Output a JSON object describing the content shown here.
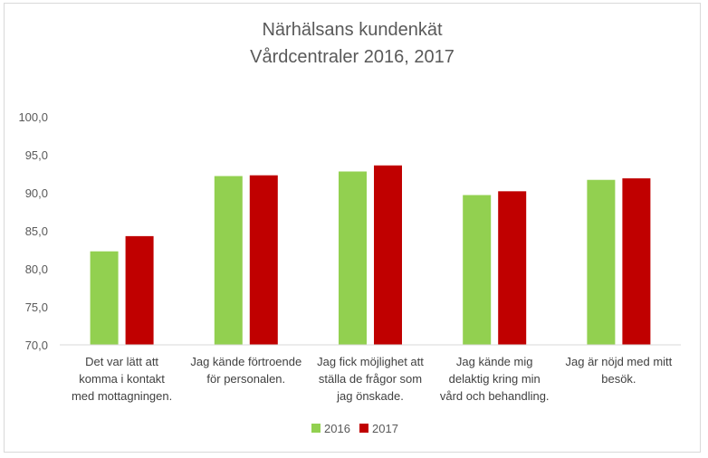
{
  "chart_data": {
    "type": "bar",
    "title": "Närhälsans kundenkät",
    "subtitle": "Vårdcentraler 2016, 2017",
    "categories": [
      [
        "Det var lätt att",
        "komma i kontakt",
        "med mottagningen."
      ],
      [
        "Jag kände förtroende",
        "för personalen."
      ],
      [
        "Jag fick möjlighet att",
        "ställa de frågor som",
        "jag önskade."
      ],
      [
        "Jag kände mig",
        "delaktig kring min",
        "vård och behandling."
      ],
      [
        "Jag är nöjd med mitt",
        "besök."
      ]
    ],
    "series": [
      {
        "name": "2016",
        "color": "#92d050",
        "values": [
          82.3,
          92.2,
          92.8,
          89.7,
          91.7
        ]
      },
      {
        "name": "2017",
        "color": "#c00000",
        "values": [
          84.3,
          92.3,
          93.6,
          90.2,
          91.9
        ]
      }
    ],
    "ylim": [
      70,
      100
    ],
    "yticks": [
      "70,0",
      "75,0",
      "80,0",
      "85,0",
      "90,0",
      "95,0",
      "100,0"
    ],
    "grid": false,
    "legend_position": "bottom"
  }
}
